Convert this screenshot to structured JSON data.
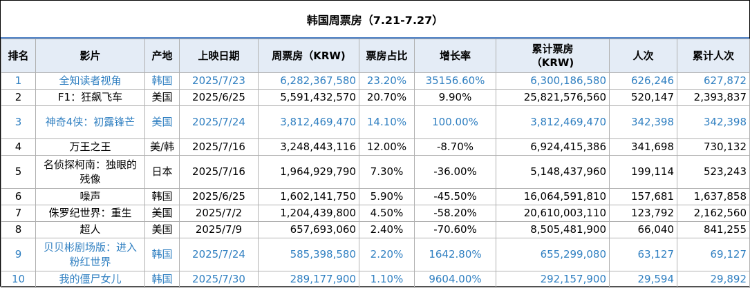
{
  "title": "韩国周票房（7.21-7.27）",
  "headers": [
    "排名",
    "影片",
    "产地",
    "上映日期",
    "周票房（KRW)",
    "票房占比",
    "增长率",
    "累计票房\n（KRW)",
    "人次",
    "累计人次"
  ],
  "rows": [
    {
      "rank": "1",
      "film": "全知读者视角",
      "origin": "韩国",
      "date": "2025/7/23",
      "weekly": "6,282,367,580",
      "share": "23.20%",
      "growth": "35156.60%",
      "cumulative": "6,300,186,580",
      "admissions": "626,246",
      "cum_admissions": "627,872",
      "highlight": true
    },
    {
      "rank": "2",
      "film": "F1：狂飙飞车",
      "origin": "美国",
      "date": "2025/6/25",
      "weekly": "5,591,432,570",
      "share": "20.70%",
      "growth": "9.90%",
      "cumulative": "25,821,576,560",
      "admissions": "520,147",
      "cum_admissions": "2,393,837",
      "highlight": false
    },
    {
      "rank": "3",
      "film": "神奇4侠：初露锋芒",
      "origin": "美国",
      "date": "2025/7/24",
      "weekly": "3,812,469,470",
      "share": "14.10%",
      "growth": "100.00%",
      "cumulative": "3,812,469,470",
      "admissions": "342,398",
      "cum_admissions": "342,398",
      "highlight": true
    },
    {
      "rank": "4",
      "film": "万王之王",
      "origin": "美/韩",
      "date": "2025/7/16",
      "weekly": "3,248,443,116",
      "share": "12.00%",
      "growth": "-8.70%",
      "cumulative": "6,924,415,386",
      "admissions": "341,698",
      "cum_admissions": "730,132",
      "highlight": false
    },
    {
      "rank": "5",
      "film": "名侦探柯南：独眼的残像",
      "origin": "日本",
      "date": "2025/7/16",
      "weekly": "1,964,929,790",
      "share": "7.30%",
      "growth": "-36.00%",
      "cumulative": "5,148,437,960",
      "admissions": "199,114",
      "cum_admissions": "523,243",
      "highlight": false
    },
    {
      "rank": "6",
      "film": "噪声",
      "origin": "韩国",
      "date": "2025/6/25",
      "weekly": "1,602,141,750",
      "share": "5.90%",
      "growth": "-45.50%",
      "cumulative": "16,064,591,810",
      "admissions": "157,681",
      "cum_admissions": "1,637,858",
      "highlight": false
    },
    {
      "rank": "7",
      "film": "侏罗纪世界：重生",
      "origin": "美国",
      "date": "2025/7/2",
      "weekly": "1,204,439,800",
      "share": "4.50%",
      "growth": "-58.20%",
      "cumulative": "20,610,003,110",
      "admissions": "123,792",
      "cum_admissions": "2,162,560",
      "highlight": false
    },
    {
      "rank": "8",
      "film": "超人",
      "origin": "美国",
      "date": "2025/7/9",
      "weekly": "657,693,060",
      "share": "2.40%",
      "growth": "-70.60%",
      "cumulative": "8,505,481,900",
      "admissions": "66,040",
      "cum_admissions": "841,255",
      "highlight": false
    },
    {
      "rank": "9",
      "film": "贝贝彬剧场版：进入粉红世界",
      "origin": "韩国",
      "date": "2025/7/24",
      "weekly": "585,398,580",
      "share": "2.20%",
      "growth": "1642.80%",
      "cumulative": "655,299,080",
      "admissions": "63,127",
      "cum_admissions": "69,127",
      "highlight": true
    },
    {
      "rank": "10",
      "film": "我的僵尸女儿",
      "origin": "韩国",
      "date": "2025/7/30",
      "weekly": "289,177,900",
      "share": "1.10%",
      "growth": "9604.00%",
      "cumulative": "292,157,900",
      "admissions": "29,594",
      "cum_admissions": "29,892",
      "highlight": true
    }
  ],
  "colors": {
    "highlight_text": "#2f7fc1",
    "header_bg": "#e4ecf6",
    "title_rule": "#4a7ec4"
  }
}
